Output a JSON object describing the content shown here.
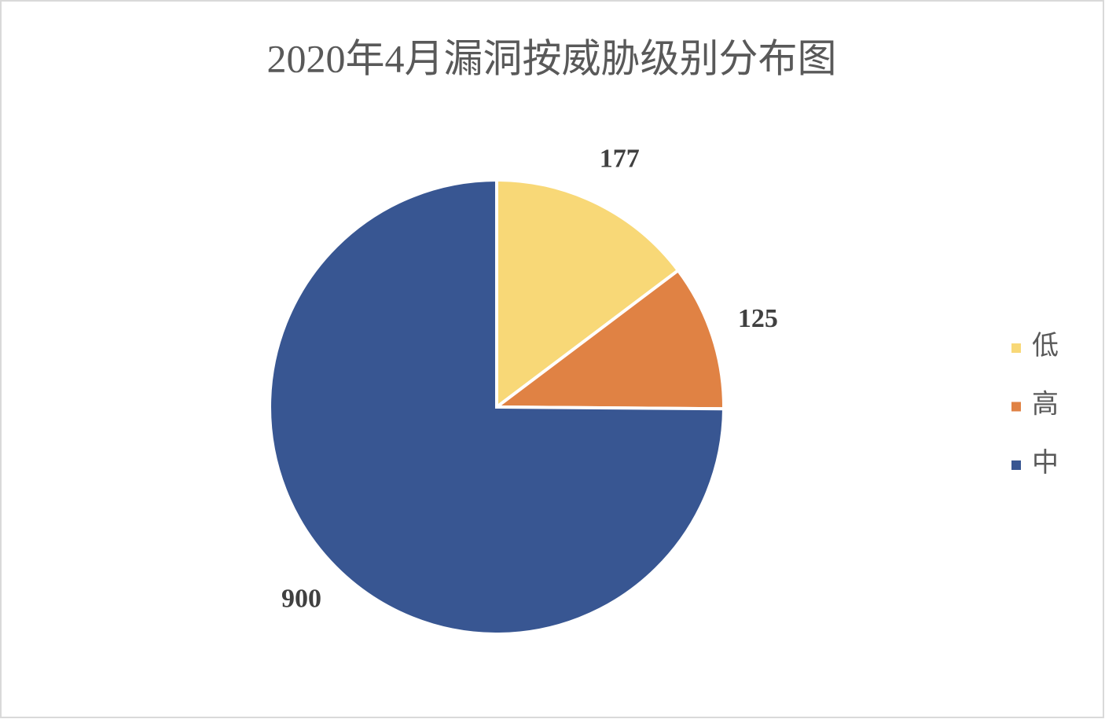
{
  "chart_data": {
    "type": "pie",
    "title": "2020年4月漏洞按威胁级别分布图",
    "categories": [
      "低",
      "高",
      "中"
    ],
    "values": [
      177,
      125,
      900
    ],
    "colors": [
      "#f8d877",
      "#e08244",
      "#385692"
    ],
    "legend": "right"
  }
}
